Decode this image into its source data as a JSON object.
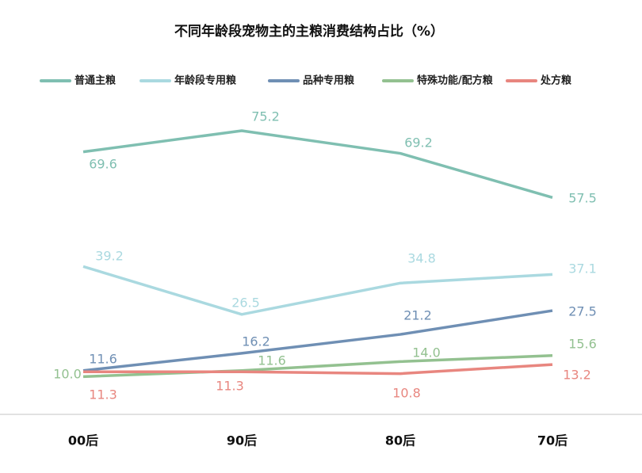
{
  "chart_data": {
    "type": "line",
    "title": "不同年龄段宠物主的主粮消费结构占比（%）",
    "categories": [
      "00后",
      "90后",
      "80后",
      "70后"
    ],
    "series": [
      {
        "name": "普通主粮",
        "color": "#7fbfb1",
        "values": [
          69.6,
          75.2,
          69.2,
          57.5
        ]
      },
      {
        "name": "年龄段专用粮",
        "color": "#aad9e0",
        "values": [
          39.2,
          26.5,
          34.8,
          37.1
        ]
      },
      {
        "name": "品种专用粮",
        "color": "#6f8fb4",
        "values": [
          11.6,
          16.2,
          21.2,
          27.5
        ]
      },
      {
        "name": "特殊功能/配方粮",
        "color": "#93c190",
        "values": [
          10.0,
          11.6,
          14.0,
          15.6
        ]
      },
      {
        "name": "处方粮",
        "color": "#e8867f",
        "values": [
          11.3,
          11.3,
          10.8,
          13.2
        ]
      }
    ],
    "value_labels": [
      [
        "69.6",
        "75.2",
        "69.2",
        "57.5"
      ],
      [
        "39.2",
        "26.5",
        "34.8",
        "37.1"
      ],
      [
        "11.6",
        "16.2",
        "21.2",
        "27.5"
      ],
      [
        "10.0",
        "11.6",
        "14.0",
        "15.6"
      ],
      [
        "11.3",
        "11.3",
        "10.8",
        "13.2"
      ]
    ],
    "legend": "top"
  }
}
